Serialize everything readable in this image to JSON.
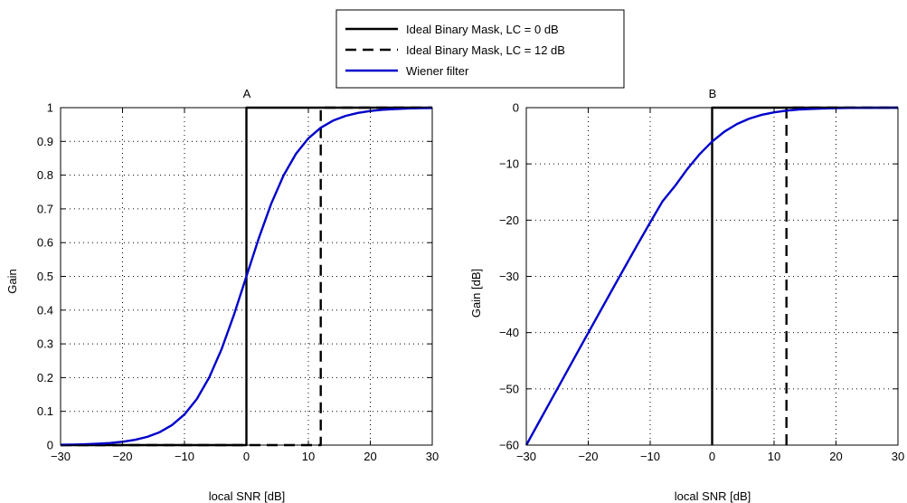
{
  "legend": {
    "entries": [
      {
        "label": "Ideal Binary Mask, LC = 0 dB",
        "color": "#000000",
        "dash": "solid"
      },
      {
        "label": "Ideal Binary Mask, LC = 12 dB",
        "color": "#000000",
        "dash": "dashed"
      },
      {
        "label": "Wiener filter",
        "color": "#0000cc",
        "dash": "solid"
      }
    ]
  },
  "chart_data": [
    {
      "type": "line",
      "title": "A",
      "xlabel": "local SNR [dB]",
      "ylabel": "Gain",
      "xlim": [
        -30,
        30
      ],
      "ylim": [
        0,
        1
      ],
      "xticks": [
        -30,
        -20,
        -10,
        0,
        10,
        20,
        30
      ],
      "xtick_labels": [
        "−30",
        "−20",
        "−10",
        "0",
        "10",
        "20",
        "30"
      ],
      "yticks": [
        0,
        0.1,
        0.2,
        0.3,
        0.4,
        0.5,
        0.6,
        0.7,
        0.8,
        0.9,
        1
      ],
      "ytick_labels": [
        "0",
        "0.1",
        "0.2",
        "0.3",
        "0.4",
        "0.5",
        "0.6",
        "0.7",
        "0.8",
        "0.9",
        "1"
      ],
      "grid": true,
      "series": [
        {
          "name": "Ideal Binary Mask, LC = 0 dB",
          "color": "#000000",
          "dash": "solid",
          "x": [
            -30,
            0,
            0,
            30
          ],
          "y": [
            0,
            0,
            1,
            1
          ]
        },
        {
          "name": "Ideal Binary Mask, LC = 12 dB",
          "color": "#000000",
          "dash": "dashed",
          "x": [
            -30,
            12,
            12,
            30
          ],
          "y": [
            0,
            0,
            1,
            1
          ]
        },
        {
          "name": "Wiener filter",
          "color": "#0000cc",
          "dash": "solid",
          "x": [
            -30,
            -28,
            -26,
            -24,
            -22,
            -20,
            -18,
            -16,
            -14,
            -12,
            -10,
            -8,
            -6,
            -4,
            -2,
            0,
            2,
            4,
            6,
            8,
            10,
            12,
            14,
            16,
            18,
            20,
            22,
            24,
            26,
            28,
            30
          ],
          "y": [
            0.001,
            0.0016,
            0.0025,
            0.004,
            0.0063,
            0.0099,
            0.0156,
            0.0245,
            0.0383,
            0.0594,
            0.0909,
            0.1368,
            0.2008,
            0.2847,
            0.3869,
            0.5,
            0.6131,
            0.7153,
            0.7992,
            0.8632,
            0.9091,
            0.9406,
            0.9617,
            0.9755,
            0.9844,
            0.9901,
            0.9937,
            0.996,
            0.9975,
            0.9984,
            0.999
          ]
        }
      ]
    },
    {
      "type": "line",
      "title": "B",
      "xlabel": "local SNR [dB]",
      "ylabel": "Gain [dB]",
      "xlim": [
        -30,
        30
      ],
      "ylim": [
        -60,
        0
      ],
      "xticks": [
        -30,
        -20,
        -10,
        0,
        10,
        20,
        30
      ],
      "xtick_labels": [
        "−30",
        "−20",
        "−10",
        "0",
        "10",
        "20",
        "30"
      ],
      "yticks": [
        -60,
        -50,
        -40,
        -30,
        -20,
        -10,
        0
      ],
      "ytick_labels": [
        "−60",
        "−50",
        "−40",
        "−30",
        "−20",
        "−10",
        "0"
      ],
      "grid": true,
      "series": [
        {
          "name": "Ideal Binary Mask, LC = 0 dB",
          "color": "#000000",
          "dash": "solid",
          "x": [
            0,
            0,
            30
          ],
          "y": [
            -60,
            0,
            0
          ]
        },
        {
          "name": "Ideal Binary Mask, LC = 12 dB",
          "color": "#000000",
          "dash": "dashed",
          "x": [
            12,
            12,
            30
          ],
          "y": [
            -60,
            0,
            0
          ]
        },
        {
          "name": "Wiener filter",
          "color": "#0000cc",
          "dash": "solid",
          "x": [
            -30,
            -28,
            -26,
            -24,
            -22,
            -20,
            -18,
            -16,
            -14,
            -12,
            -10,
            -8,
            -6,
            -4,
            -2,
            0,
            2,
            4,
            6,
            8,
            10,
            12,
            14,
            16,
            18,
            20,
            22,
            24,
            26,
            28,
            30
          ],
          "y": [
            -60,
            -56,
            -52.01,
            -48.02,
            -44.03,
            -40.04,
            -36.07,
            -32.11,
            -28.17,
            -24.26,
            -20.41,
            -16.64,
            -13.94,
            -10.91,
            -8.25,
            -6.02,
            -4.25,
            -2.91,
            -1.95,
            -1.28,
            -0.83,
            -0.53,
            -0.34,
            -0.22,
            -0.14,
            -0.09,
            -0.05,
            -0.03,
            -0.02,
            -0.01,
            0
          ]
        }
      ]
    }
  ]
}
